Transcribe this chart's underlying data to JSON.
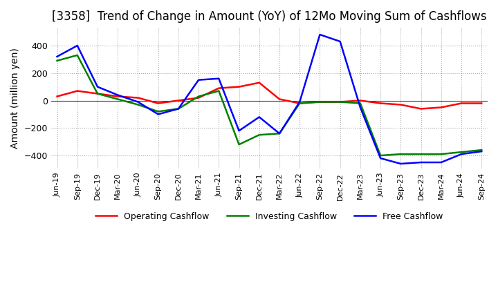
{
  "title": "[3358]  Trend of Change in Amount (YoY) of 12Mo Moving Sum of Cashflows",
  "ylabel": "Amount (million yen)",
  "xlabels": [
    "Jun-19",
    "Sep-19",
    "Dec-19",
    "Mar-20",
    "Jun-20",
    "Sep-20",
    "Dec-20",
    "Mar-21",
    "Jun-21",
    "Sep-21",
    "Dec-21",
    "Mar-22",
    "Jun-22",
    "Sep-22",
    "Dec-22",
    "Mar-23",
    "Jun-23",
    "Sep-23",
    "Dec-23",
    "Mar-24",
    "Jun-24",
    "Sep-24"
  ],
  "operating": [
    30,
    70,
    50,
    30,
    20,
    -20,
    0,
    20,
    90,
    100,
    130,
    10,
    -20,
    -10,
    -10,
    0,
    -20,
    -30,
    -60,
    -50,
    -20,
    -20
  ],
  "investing": [
    290,
    330,
    50,
    10,
    -30,
    -80,
    -60,
    30,
    70,
    -320,
    -250,
    -240,
    -20,
    -10,
    -10,
    -20,
    -400,
    -390,
    -390,
    -390,
    -375,
    -360
  ],
  "free": [
    320,
    400,
    100,
    40,
    -10,
    -100,
    -60,
    150,
    160,
    -220,
    -120,
    -240,
    -10,
    480,
    430,
    -50,
    -420,
    -460,
    -450,
    -450,
    -390,
    -370
  ],
  "operating_color": "#ff0000",
  "investing_color": "#008000",
  "free_color": "#0000ff",
  "ylim": [
    -500,
    530
  ],
  "yticks": [
    -400,
    -200,
    0,
    200,
    400
  ],
  "bg_color": "#ffffff",
  "grid_color": "#aaaaaa",
  "title_fontsize": 12,
  "label_fontsize": 10
}
